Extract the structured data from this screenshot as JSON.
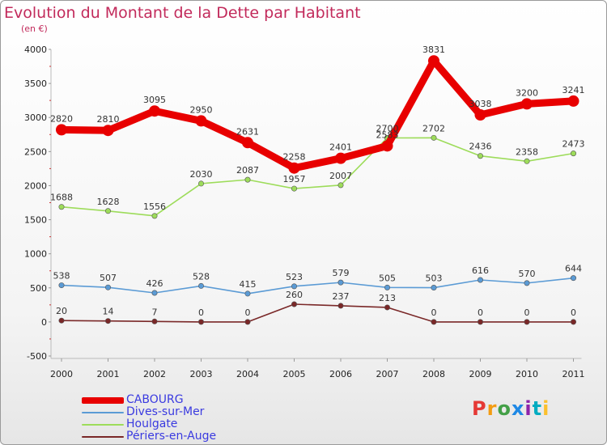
{
  "title": "Evolution du Montant de la Dette par Habitant",
  "subtitle": "(en €)",
  "logo_text": "Proxiti",
  "logo_colors": [
    "#e53935",
    "#f39c12",
    "#43a047",
    "#1e88e5",
    "#8e24aa",
    "#00acc1",
    "#fbc02d"
  ],
  "chart_data": {
    "type": "line",
    "x": [
      "2000",
      "2001",
      "2002",
      "2003",
      "2004",
      "2005",
      "2006",
      "2007",
      "2008",
      "2009",
      "2010",
      "2011"
    ],
    "ylim": [
      -500,
      4000
    ],
    "yticks": [
      -500,
      0,
      500,
      1000,
      1500,
      2000,
      2500,
      3000,
      3500,
      4000
    ],
    "grid": false,
    "legend_position": "bottom-left",
    "series": [
      {
        "name": "CABOURG",
        "color": "#e80000",
        "values": [
          2820,
          2810,
          3095,
          2950,
          2631,
          2258,
          2401,
          2583,
          3831,
          3038,
          3200,
          3241
        ]
      },
      {
        "name": "Dives-sur-Mer",
        "color": "#5b9bd5",
        "values": [
          538,
          507,
          426,
          528,
          415,
          523,
          579,
          505,
          503,
          616,
          570,
          644
        ]
      },
      {
        "name": "Houlgate",
        "color": "#9ddc5a",
        "values": [
          1688,
          1628,
          1556,
          2030,
          2087,
          1957,
          2007,
          2700,
          2702,
          2436,
          2358,
          2473
        ]
      },
      {
        "name": "Périers-en-Auge",
        "color": "#7a2828",
        "values": [
          20,
          14,
          7,
          0,
          0,
          260,
          237,
          213,
          0,
          0,
          0,
          0
        ]
      }
    ]
  }
}
